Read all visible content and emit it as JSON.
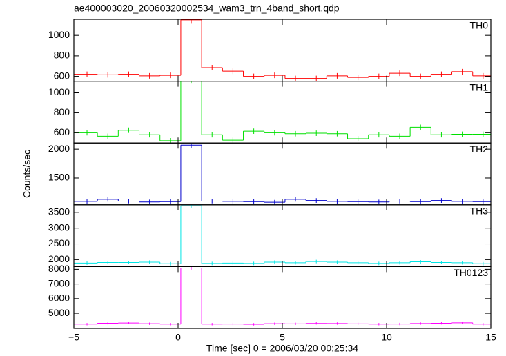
{
  "chart_data": {
    "type": "step",
    "title": "ae400003020_20060320002534_wam3_trn_4band_short.qdp",
    "xlabel": "Time [sec] 0 = 2006/03/20 00:25:34",
    "ylabel": "Counts/sec",
    "bins": [
      -5.87,
      -4.87,
      -3.87,
      -2.87,
      -1.87,
      -0.87,
      0.13,
      1.13,
      2.13,
      3.13,
      4.13,
      5.13,
      6.13,
      7.13,
      8.13,
      9.13,
      10.13,
      11.13,
      12.13,
      13.13,
      14.13,
      15.13
    ],
    "xlim": [
      -5,
      15
    ],
    "xticks": [
      {
        "value": -5,
        "label": "−5"
      },
      0,
      5,
      10,
      15
    ],
    "panels": [
      {
        "name": "TH0",
        "color": "#ff0000",
        "ylim": [
          553,
          1156
        ],
        "yticks": [
          600,
          800,
          1000
        ],
        "values": [
          620,
          620,
          615,
          620,
          605,
          610,
          1150,
          685,
          650,
          600,
          610,
          580,
          580,
          605,
          590,
          600,
          630,
          600,
          620,
          645,
          605
        ],
        "errors": [
          27,
          27,
          27,
          27,
          27,
          27,
          37,
          27,
          27,
          27,
          27,
          27,
          27,
          27,
          27,
          27,
          27,
          27,
          27,
          27,
          27
        ]
      },
      {
        "name": "TH1",
        "color": "#00e000",
        "ylim": [
          497,
          1117
        ],
        "yticks": [
          600,
          800,
          1000
        ],
        "values": [
          600,
          600,
          565,
          625,
          580,
          520,
          1130,
          580,
          525,
          615,
          600,
          590,
          595,
          590,
          540,
          580,
          565,
          655,
          580,
          585,
          585
        ],
        "errors": [
          27,
          27,
          27,
          27,
          27,
          27,
          37,
          27,
          27,
          27,
          27,
          27,
          27,
          27,
          27,
          27,
          27,
          27,
          27,
          27,
          27
        ]
      },
      {
        "name": "TH2",
        "color": "#0000cc",
        "ylim": [
          1036,
          2107
        ],
        "yticks": [
          1500,
          2000
        ],
        "values": [
          1095,
          1095,
          1130,
          1100,
          1085,
          1090,
          2070,
          1100,
          1095,
          1090,
          1080,
          1130,
          1110,
          1095,
          1090,
          1085,
          1100,
          1090,
          1110,
          1095,
          1090
        ],
        "errors": [
          40,
          40,
          40,
          40,
          40,
          40,
          55,
          40,
          40,
          40,
          40,
          40,
          40,
          40,
          40,
          40,
          40,
          40,
          40,
          40,
          40
        ]
      },
      {
        "name": "TH3",
        "color": "#00e5e5",
        "ylim": [
          1780,
          3742
        ],
        "yticks": [
          2000,
          2500,
          3000,
          3500
        ],
        "values": [
          1890,
          1890,
          1910,
          1910,
          1920,
          1870,
          3710,
          1880,
          1890,
          1880,
          1920,
          1900,
          1940,
          1920,
          1900,
          1880,
          1900,
          1930,
          1910,
          1900,
          1870
        ],
        "errors": [
          55,
          55,
          55,
          55,
          55,
          55,
          75,
          55,
          55,
          55,
          55,
          55,
          55,
          55,
          55,
          55,
          55,
          55,
          55,
          55,
          55
        ]
      },
      {
        "name": "TH0123",
        "color": "#ff00ff",
        "ylim": [
          3967,
          8188
        ],
        "yticks": [
          5000,
          6000,
          7000,
          8000
        ],
        "values": [
          4260,
          4260,
          4320,
          4340,
          4290,
          4260,
          8090,
          4260,
          4270,
          4250,
          4290,
          4280,
          4310,
          4300,
          4280,
          4260,
          4270,
          4300,
          4320,
          4350,
          4260
        ],
        "errors": [
          80,
          80,
          80,
          80,
          80,
          80,
          110,
          80,
          80,
          80,
          80,
          80,
          80,
          80,
          80,
          80,
          80,
          80,
          80,
          80,
          80
        ]
      }
    ]
  }
}
